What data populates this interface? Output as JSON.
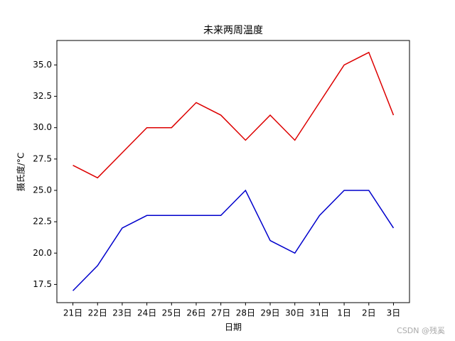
{
  "chart_data": {
    "type": "line",
    "title": "未来两周温度",
    "xlabel": "日期",
    "ylabel": "摄氏度/°C",
    "categories": [
      "21日",
      "22日",
      "23日",
      "24日",
      "25日",
      "26日",
      "27日",
      "28日",
      "29日",
      "30日",
      "31日",
      "1日",
      "2日",
      "3日"
    ],
    "series": [
      {
        "color": "#dd0000",
        "values": [
          27,
          26,
          28,
          30,
          30,
          32,
          31,
          29,
          31,
          29,
          32,
          35,
          36,
          31
        ]
      },
      {
        "color": "#0000cc",
        "values": [
          17,
          19,
          22,
          23,
          23,
          23,
          23,
          25,
          21,
          20,
          23,
          25,
          25,
          22
        ]
      }
    ],
    "ylim": [
      16.05,
      36.95
    ],
    "yticks": [
      17.5,
      {
        "value": 20,
        "label": "20.0"
      },
      22.5,
      {
        "value": 25,
        "label": "25.0"
      },
      27.5,
      {
        "value": 30,
        "label": "30.0"
      },
      32.5,
      {
        "value": 35,
        "label": "35.0"
      }
    ],
    "grid": false,
    "watermark": "CSDN @残奚"
  }
}
